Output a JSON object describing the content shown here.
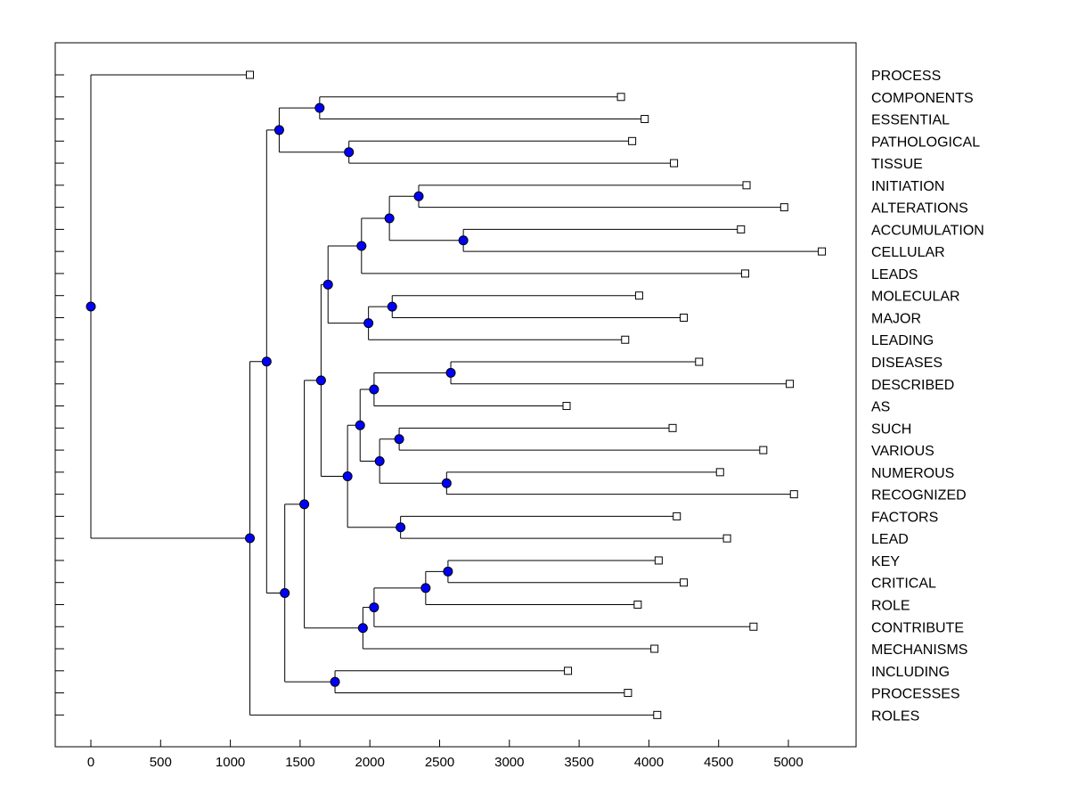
{
  "chart_data": {
    "type": "dendrogram",
    "title": "",
    "xlabel": "",
    "ylabel": "",
    "xlim": [
      -250,
      5500
    ],
    "xticks": [
      0,
      500,
      1000,
      1500,
      2000,
      2500,
      3000,
      3500,
      4000,
      4500,
      5000
    ],
    "grid": false,
    "colors": {
      "node": "#0000ff",
      "line": "#000000",
      "leaf_fill": "#ffffff"
    },
    "leaves": [
      {
        "label": "PROCESS",
        "x": 1140
      },
      {
        "label": "COMPONENTS",
        "x": 3800
      },
      {
        "label": "ESSENTIAL",
        "x": 3970
      },
      {
        "label": "PATHOLOGICAL",
        "x": 3880
      },
      {
        "label": "TISSUE",
        "x": 4180
      },
      {
        "label": "INITIATION",
        "x": 4700
      },
      {
        "label": "ALTERATIONS",
        "x": 4970
      },
      {
        "label": "ACCUMULATION",
        "x": 4660
      },
      {
        "label": "CELLULAR",
        "x": 5240
      },
      {
        "label": "LEADS",
        "x": 4690
      },
      {
        "label": "MOLECULAR",
        "x": 3930
      },
      {
        "label": "MAJOR",
        "x": 4250
      },
      {
        "label": "LEADING",
        "x": 3830
      },
      {
        "label": "DISEASES",
        "x": 4360
      },
      {
        "label": "DESCRIBED",
        "x": 5010
      },
      {
        "label": "AS",
        "x": 3410
      },
      {
        "label": "SUCH",
        "x": 4170
      },
      {
        "label": "VARIOUS",
        "x": 4820
      },
      {
        "label": "NUMEROUS",
        "x": 4510
      },
      {
        "label": "RECOGNIZED",
        "x": 5040
      },
      {
        "label": "FACTORS",
        "x": 4200
      },
      {
        "label": "LEAD",
        "x": 4560
      },
      {
        "label": "KEY",
        "x": 4070
      },
      {
        "label": "CRITICAL",
        "x": 4250
      },
      {
        "label": "ROLE",
        "x": 3920
      },
      {
        "label": "CONTRIBUTE",
        "x": 4750
      },
      {
        "label": "MECHANISMS",
        "x": 4040
      },
      {
        "label": "INCLUDING",
        "x": 3420
      },
      {
        "label": "PROCESSES",
        "x": 3850
      },
      {
        "label": "ROLES",
        "x": 4060
      }
    ],
    "nodes": [
      {
        "id": "n0",
        "x": 0,
        "children": [
          "L0",
          "n1"
        ]
      },
      {
        "id": "n1",
        "x": 1140,
        "children": [
          "n2",
          "L29"
        ]
      },
      {
        "id": "n2",
        "x": 1260,
        "children": [
          "n3",
          "n12"
        ]
      },
      {
        "id": "n3",
        "x": 1350,
        "children": [
          "n4",
          "n5"
        ]
      },
      {
        "id": "n4",
        "x": 1640,
        "children": [
          "L1",
          "L2"
        ]
      },
      {
        "id": "n5",
        "x": 1850,
        "children": [
          "L3",
          "L4"
        ]
      },
      {
        "id": "n6",
        "x": 2350,
        "children": [
          "L5",
          "L6"
        ]
      },
      {
        "id": "n7",
        "x": 2670,
        "children": [
          "L7",
          "L8"
        ]
      },
      {
        "id": "n8",
        "x": 2140,
        "children": [
          "n6",
          "n7"
        ]
      },
      {
        "id": "n9",
        "x": 1940,
        "children": [
          "n8",
          "L9"
        ]
      },
      {
        "id": "n10",
        "x": 2160,
        "children": [
          "L10",
          "L11"
        ]
      },
      {
        "id": "n11",
        "x": 1990,
        "children": [
          "n10",
          "L12"
        ]
      },
      {
        "id": "n13",
        "x": 1700,
        "children": [
          "n9",
          "n11"
        ]
      },
      {
        "id": "n14",
        "x": 2580,
        "children": [
          "L13",
          "L14"
        ]
      },
      {
        "id": "n15",
        "x": 2030,
        "children": [
          "n14",
          "L15"
        ]
      },
      {
        "id": "n16",
        "x": 2210,
        "children": [
          "L16",
          "L17"
        ]
      },
      {
        "id": "n17",
        "x": 2550,
        "children": [
          "L18",
          "L19"
        ]
      },
      {
        "id": "n18",
        "x": 2070,
        "children": [
          "n16",
          "n17"
        ]
      },
      {
        "id": "n19",
        "x": 1930,
        "children": [
          "n15",
          "n18"
        ]
      },
      {
        "id": "n20",
        "x": 2220,
        "children": [
          "L20",
          "L21"
        ]
      },
      {
        "id": "n21",
        "x": 1840,
        "children": [
          "n19",
          "n20"
        ]
      },
      {
        "id": "n22",
        "x": 1650,
        "children": [
          "n13",
          "n21"
        ]
      },
      {
        "id": "n23",
        "x": 2560,
        "children": [
          "L22",
          "L23"
        ]
      },
      {
        "id": "n24",
        "x": 2400,
        "children": [
          "n23",
          "L24"
        ]
      },
      {
        "id": "n25",
        "x": 2030,
        "children": [
          "n24",
          "L25"
        ]
      },
      {
        "id": "n26",
        "x": 1950,
        "children": [
          "n25",
          "L26"
        ]
      },
      {
        "id": "n27",
        "x": 1530,
        "children": [
          "n22",
          "n26"
        ]
      },
      {
        "id": "n28",
        "x": 1750,
        "children": [
          "L27",
          "L28"
        ]
      },
      {
        "id": "n12",
        "x": 1390,
        "children": [
          "n27",
          "n28"
        ]
      }
    ]
  }
}
